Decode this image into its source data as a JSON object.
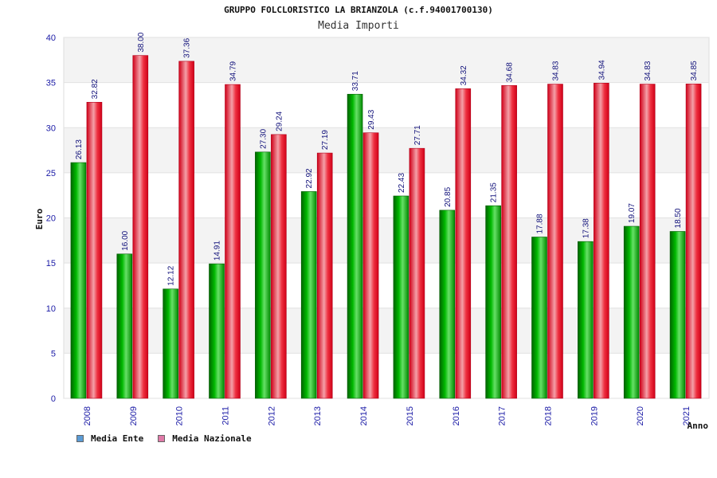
{
  "chart_data": {
    "type": "bar",
    "title": "GRUPPO FOLCLORISTICO LA BRIANZOLA (c.f.94001700130)",
    "subtitle": "Media Importi",
    "xlabel": "Anno",
    "ylabel": "Euro",
    "ylim": [
      0,
      40
    ],
    "yticks": [
      "0",
      "5",
      "10",
      "15",
      "20",
      "25",
      "30",
      "35",
      "40"
    ],
    "grid": true,
    "legend_position": "bottom-left",
    "categories": [
      "2008",
      "2009",
      "2010",
      "2011",
      "2012",
      "2013",
      "2014",
      "2015",
      "2016",
      "2017",
      "2018",
      "2019",
      "2020",
      "2021"
    ],
    "series": [
      {
        "name": "Media Ente",
        "color": "#00a000",
        "legend_color": "#5b9bd5",
        "values": [
          26.13,
          16.0,
          12.12,
          14.91,
          27.3,
          22.92,
          33.71,
          22.43,
          20.85,
          21.35,
          17.88,
          17.38,
          19.07,
          18.5
        ],
        "labels": [
          "26.13",
          "16.00",
          "12.12",
          "14.91",
          "27.30",
          "22.92",
          "33.71",
          "22.43",
          "20.85",
          "21.35",
          "17.88",
          "17.38",
          "19.07",
          "18.50"
        ]
      },
      {
        "name": "Media Nazionale",
        "color": "#e8102a",
        "legend_color": "#e07aa8",
        "values": [
          32.82,
          38.0,
          37.36,
          34.79,
          29.24,
          27.19,
          29.43,
          27.71,
          34.32,
          34.68,
          34.83,
          34.94,
          34.83,
          34.85
        ],
        "labels": [
          "32.82",
          "38.00",
          "37.36",
          "34.79",
          "29.24",
          "27.19",
          "29.43",
          "27.71",
          "34.32",
          "34.68",
          "34.83",
          "34.94",
          "34.83",
          "34.85"
        ]
      }
    ]
  }
}
